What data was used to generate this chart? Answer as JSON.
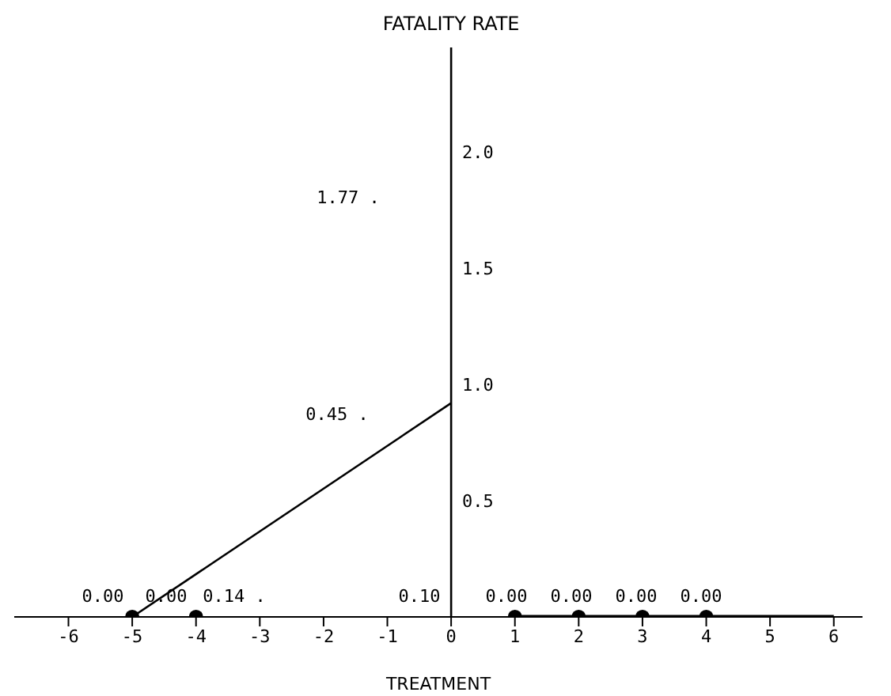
{
  "chart_data": {
    "type": "line",
    "xlabel": "TREATMENT",
    "ylabel": "FATALITY RATE",
    "xlim": [
      -6.85,
      6.45
    ],
    "ylim": [
      0,
      2.45
    ],
    "xticks": [
      -6,
      -5,
      -4,
      -3,
      -2,
      -1,
      0,
      1,
      2,
      3,
      4,
      5,
      6
    ],
    "yticks": [
      {
        "value": 0.5,
        "label": "0.5"
      },
      {
        "value": 1,
        "label": "1.0"
      },
      {
        "value": 1.5,
        "label": "1.5"
      },
      {
        "value": 2,
        "label": "2.0"
      }
    ],
    "series": [
      {
        "type": "line",
        "color": "#000000",
        "x": [
          -5,
          0
        ],
        "values": [
          0,
          0.92
        ],
        "marker": "none"
      },
      {
        "type": "line",
        "color": "#000000",
        "x": [
          1,
          6
        ],
        "values": [
          0,
          0
        ],
        "marker": "none"
      },
      {
        "type": "scatter",
        "color": "#000000",
        "x": [
          -5,
          -4,
          1,
          2,
          3,
          4
        ],
        "values": [
          0,
          0,
          0,
          0,
          0,
          0
        ],
        "marker": "circle"
      }
    ],
    "annotations": [
      "0.00",
      "0.00",
      "0.14 .",
      "1.77 .",
      "0.45 .",
      "0.10",
      "0.00",
      "0.00",
      "0.00",
      "0.00"
    ]
  }
}
